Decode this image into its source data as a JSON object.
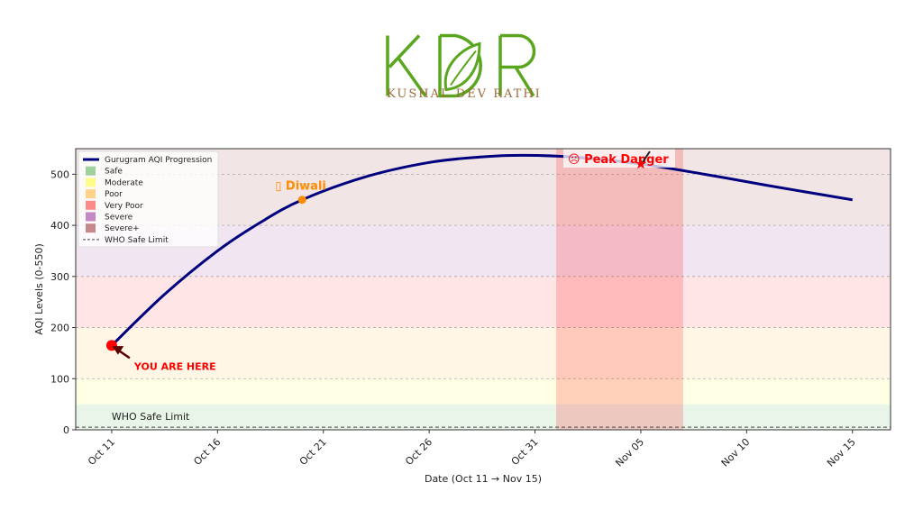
{
  "logo": {
    "letters": "KDR",
    "name": "KUSHAL DEV RATHI"
  },
  "chart_data": {
    "type": "line",
    "title": "",
    "xlabel": "Date (Oct 11 → Nov 15)",
    "ylabel": "AQI Levels (0-550)",
    "xlim_days": [
      -1.7,
      36.8
    ],
    "ylim": [
      0,
      550
    ],
    "x_ticks": [
      {
        "day": 0,
        "label": "Oct 11"
      },
      {
        "day": 5,
        "label": "Oct 16"
      },
      {
        "day": 10,
        "label": "Oct 21"
      },
      {
        "day": 15,
        "label": "Oct 26"
      },
      {
        "day": 20,
        "label": "Oct 31"
      },
      {
        "day": 25,
        "label": "Nov 05"
      },
      {
        "day": 30,
        "label": "Nov 10"
      },
      {
        "day": 35,
        "label": "Nov 15"
      }
    ],
    "y_ticks": [
      0,
      100,
      200,
      300,
      400,
      500
    ],
    "series": [
      {
        "name": "Gurugram AQI Progression",
        "color": "#00007f",
        "x_days": [
          0,
          2.5,
          5,
          7,
          9,
          12,
          15,
          17.5,
          19.5,
          22,
          25,
          28,
          31,
          35
        ],
        "values": [
          165,
          265,
          350,
          405,
          450,
          495,
          523,
          534,
          537,
          533,
          520,
          500,
          478,
          450
        ]
      }
    ],
    "bands": [
      {
        "name": "Safe",
        "from": 0,
        "to": 50,
        "color": "#2ca02c"
      },
      {
        "name": "Moderate",
        "from": 50,
        "to": 100,
        "color": "#ffff00"
      },
      {
        "name": "Poor",
        "from": 100,
        "to": 200,
        "color": "#ffa500"
      },
      {
        "name": "Very Poor",
        "from": 200,
        "to": 300,
        "color": "#ff0000"
      },
      {
        "name": "Severe",
        "from": 300,
        "to": 400,
        "color": "#800080"
      },
      {
        "name": "Severe+",
        "from": 400,
        "to": 550,
        "color": "#800000"
      }
    ],
    "who_limit": {
      "label": "WHO Safe Limit",
      "value": 5
    },
    "danger_window_days": [
      21,
      27
    ],
    "annotations": {
      "current": {
        "label": "YOU ARE HERE",
        "day": 0,
        "value": 165
      },
      "diwali": {
        "label": "▯ Diwali",
        "day": 9,
        "value": 450
      },
      "peak": {
        "label": "☹ Peak Danger",
        "day": 25,
        "value": 520
      }
    },
    "legend_position": "upper-left",
    "grid": "horizontal dashed"
  }
}
